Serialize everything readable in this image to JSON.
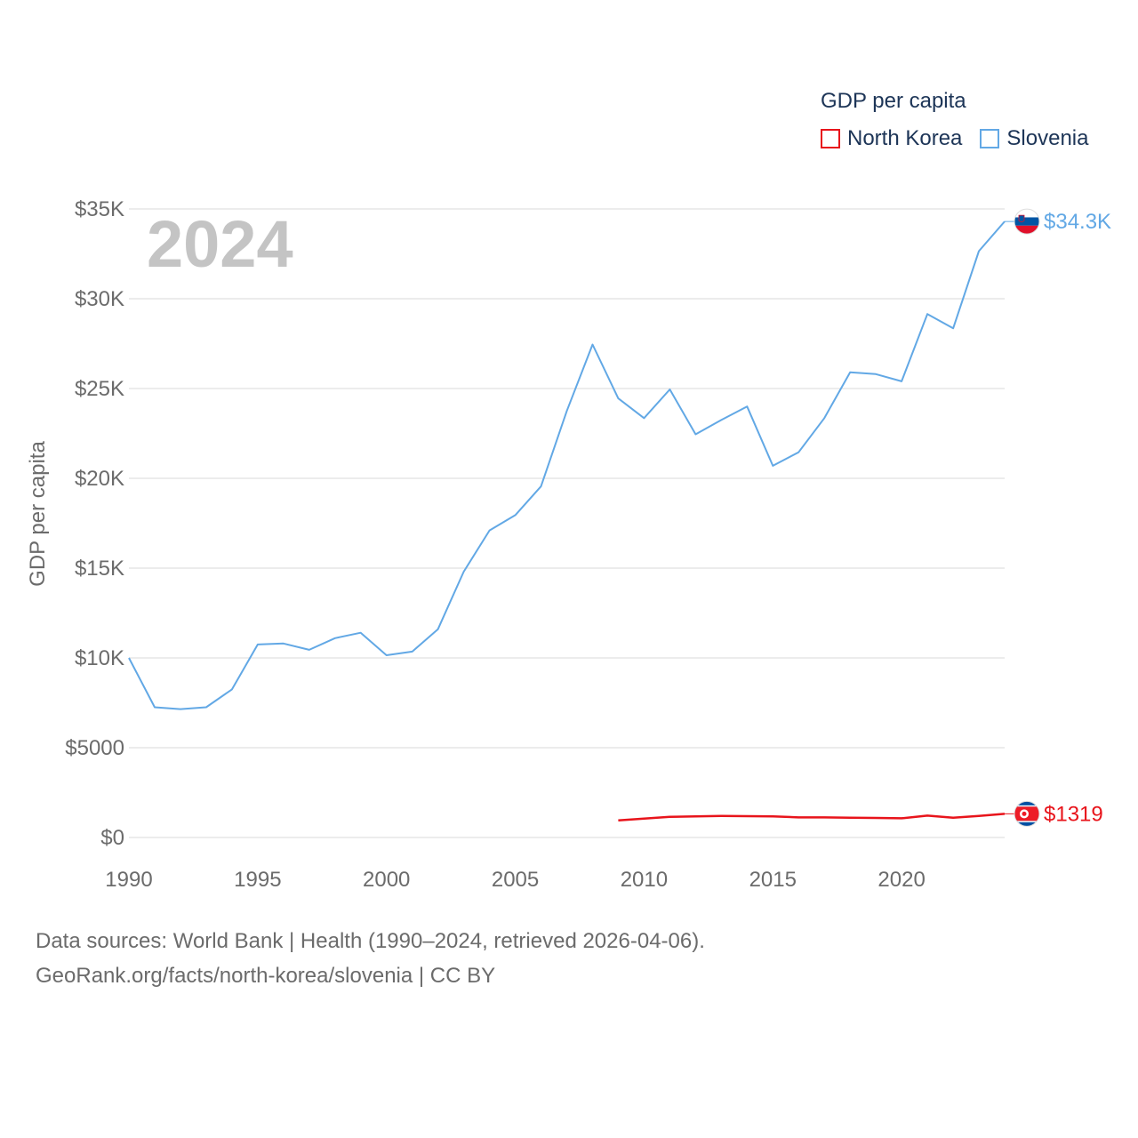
{
  "legend": {
    "title": "GDP per capita",
    "items": [
      {
        "label": "North Korea",
        "color": "#e8141b"
      },
      {
        "label": "Slovenia",
        "color": "#62a8e5"
      }
    ]
  },
  "footer": {
    "line1": "Data sources: World Bank | Health (1990–2024, retrieved 2026-04-06).",
    "line2": "GeoRank.org/facts/north-korea/slovenia | CC BY"
  },
  "chart_data": {
    "type": "line",
    "title": "GDP per capita",
    "year_label": "2024",
    "ylabel": "GDP per capita",
    "xlabel": "",
    "xlim": [
      1990,
      2024
    ],
    "ylim": [
      0,
      35000
    ],
    "x_ticks": [
      1990,
      1995,
      2000,
      2005,
      2010,
      2015,
      2020
    ],
    "x_tick_labels": [
      "1990",
      "1995",
      "2000",
      "2005",
      "2010",
      "2015",
      "2020"
    ],
    "y_ticks": [
      0,
      5000,
      10000,
      15000,
      20000,
      25000,
      30000,
      35000
    ],
    "y_tick_labels": [
      "$0",
      "$5000",
      "$10K",
      "$15K",
      "$20K",
      "$25K",
      "$30K",
      "$35K"
    ],
    "grid": true,
    "series": [
      {
        "name": "Slovenia",
        "color": "#62a8e5",
        "end_label": "$34.3K",
        "flag": "slovenia-flag",
        "x": [
          1990,
          1991,
          1992,
          1993,
          1994,
          1995,
          1996,
          1997,
          1998,
          1999,
          2000,
          2001,
          2002,
          2003,
          2004,
          2005,
          2006,
          2007,
          2008,
          2009,
          2010,
          2011,
          2012,
          2013,
          2014,
          2015,
          2016,
          2017,
          2018,
          2019,
          2020,
          2021,
          2022,
          2023,
          2024
        ],
        "values": [
          10000,
          7250,
          7150,
          7250,
          8250,
          10750,
          10800,
          10450,
          11100,
          11400,
          10150,
          10350,
          11600,
          14800,
          17100,
          17950,
          19550,
          23750,
          27450,
          24450,
          23350,
          24950,
          22450,
          23250,
          24000,
          20700,
          21450,
          23350,
          25900,
          25800,
          25400,
          29150,
          28350,
          32650,
          34300
        ]
      },
      {
        "name": "North Korea",
        "color": "#e8141b",
        "end_label": "$1319",
        "flag": "north-korea-flag",
        "x": [
          2009,
          2010,
          2011,
          2012,
          2013,
          2014,
          2015,
          2016,
          2017,
          2018,
          2019,
          2020,
          2021,
          2022,
          2023,
          2024
        ],
        "values": [
          950,
          1050,
          1150,
          1180,
          1200,
          1190,
          1180,
          1120,
          1120,
          1100,
          1090,
          1070,
          1220,
          1100,
          1200,
          1319
        ]
      }
    ]
  }
}
